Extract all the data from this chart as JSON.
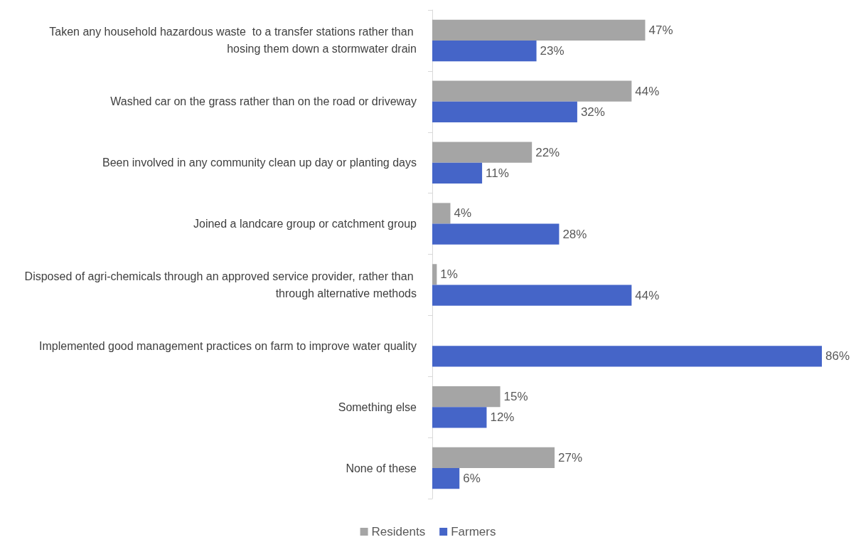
{
  "chart_data": {
    "type": "bar",
    "orientation": "horizontal",
    "categories": [
      "Taken any household hazardous waste  to a transfer stations rather than hosing them down a stormwater drain",
      "Washed car on the grass rather than on the road or driveway",
      "Been involved in any community clean up day or planting days",
      "Joined a landcare group or catchment group",
      "Disposed of agri-chemicals through an approved service provider, rather than through alternative methods",
      "Implemented good management practices on farm to improve water quality",
      "Something else",
      "None of these"
    ],
    "series": [
      {
        "name": "Residents",
        "color": "#a5a5a5",
        "values": [
          47,
          44,
          22,
          4,
          1,
          null,
          15,
          27
        ],
        "value_labels": [
          "47%",
          "44%",
          "22%",
          "4%",
          "1%",
          null,
          "15%",
          "27%"
        ]
      },
      {
        "name": "Farmers",
        "color": "#4565c8",
        "values": [
          23,
          32,
          11,
          28,
          44,
          86,
          12,
          6
        ],
        "value_labels": [
          "23%",
          "32%",
          "11%",
          "28%",
          "44%",
          "86%",
          "12%",
          "6%"
        ]
      }
    ],
    "legend": "bottom",
    "grid": false
  }
}
